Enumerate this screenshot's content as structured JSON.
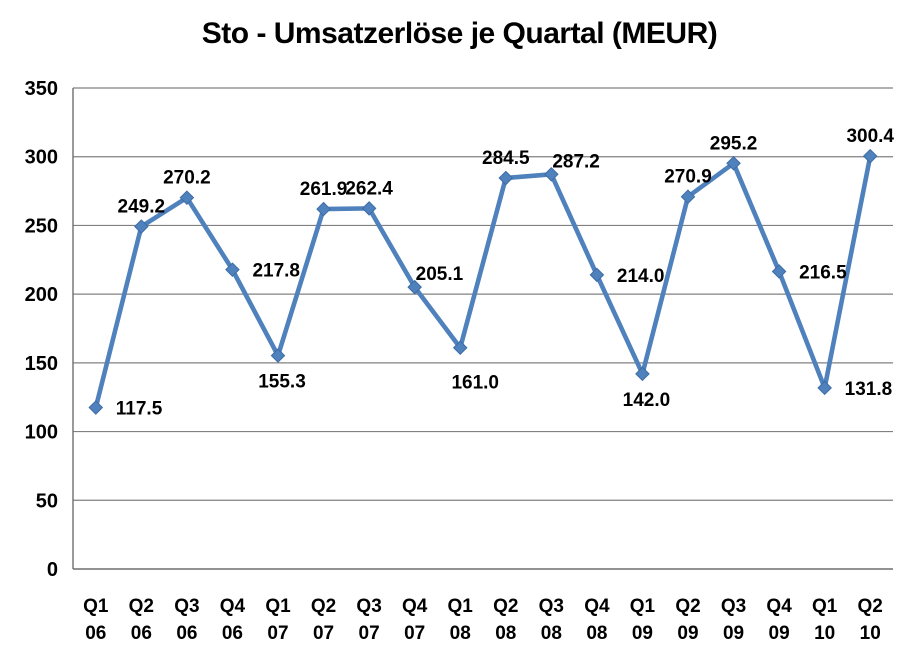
{
  "header": {
    "title": "Sto - Umsatzerlöse je Quartal (MEUR)"
  },
  "chart_data": {
    "type": "line",
    "title": "Sto - Umsatzerlöse je Quartal (MEUR)",
    "categories": [
      "Q1 06",
      "Q2 06",
      "Q3 06",
      "Q4 06",
      "Q1 07",
      "Q2 07",
      "Q3 07",
      "Q4 07",
      "Q1 08",
      "Q2 08",
      "Q3 08",
      "Q4 08",
      "Q1 09",
      "Q2 09",
      "Q3 09",
      "Q4 09",
      "Q1 10",
      "Q2 10"
    ],
    "category_label_lines": [
      [
        "Q1",
        "06"
      ],
      [
        "Q2",
        "06"
      ],
      [
        "Q3",
        "06"
      ],
      [
        "Q4",
        "06"
      ],
      [
        "Q1",
        "07"
      ],
      [
        "Q2",
        "07"
      ],
      [
        "Q3",
        "07"
      ],
      [
        "Q4",
        "07"
      ],
      [
        "Q1",
        "08"
      ],
      [
        "Q2",
        "08"
      ],
      [
        "Q3",
        "08"
      ],
      [
        "Q4",
        "08"
      ],
      [
        "Q1",
        "09"
      ],
      [
        "Q2",
        "09"
      ],
      [
        "Q3",
        "09"
      ],
      [
        "Q4",
        "09"
      ],
      [
        "Q1",
        "10"
      ],
      [
        "Q2",
        "10"
      ]
    ],
    "values": [
      117.5,
      249.2,
      270.2,
      217.8,
      155.3,
      261.9,
      262.4,
      205.1,
      161.0,
      284.5,
      287.2,
      214.0,
      142.0,
      270.9,
      295.2,
      216.5,
      131.8,
      300.4
    ],
    "data_labels": [
      "117.5",
      "249.2",
      "270.2",
      "217.8",
      "155.3",
      "261.9",
      "262.4",
      "205.1",
      "161.0",
      "284.5",
      "287.2",
      "214.0",
      "142.0",
      "270.9",
      "295.2",
      "216.5",
      "131.8",
      "300.4"
    ],
    "data_label_positions": [
      "right",
      "above",
      "above",
      "right",
      "below",
      "above",
      "above",
      "above-right",
      "below-right",
      "above",
      "above-right",
      "right",
      "below",
      "above",
      "above",
      "right",
      "right",
      "above"
    ],
    "xlabel": "",
    "ylabel": "",
    "ylim": [
      0,
      350
    ],
    "yticks": [
      0,
      50,
      100,
      150,
      200,
      250,
      300,
      350
    ],
    "grid": "horizontal",
    "legend": "none",
    "marker": "diamond",
    "series_name": "Umsatzerlöse",
    "series_color": "#4F81BD",
    "marker_edge_color": "#3D6CA5",
    "gridline_color": "#808080",
    "axis_color": "#6E6E6E",
    "text_color": "#000000",
    "background_color": "#ffffff"
  }
}
